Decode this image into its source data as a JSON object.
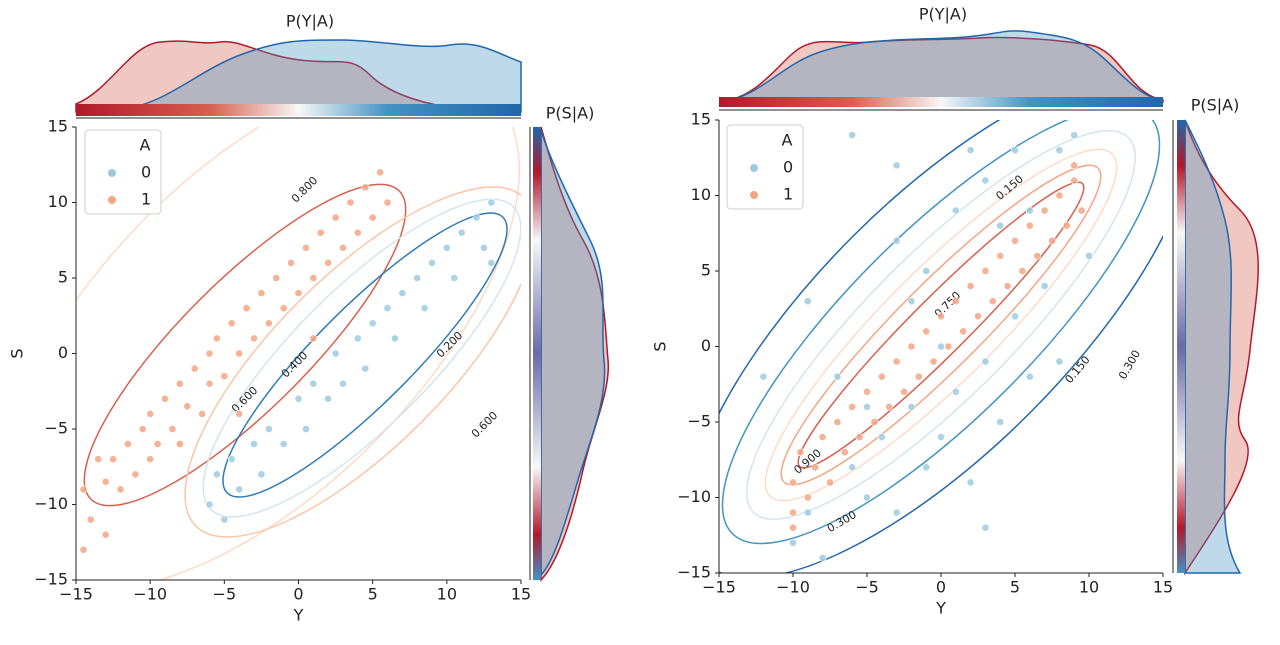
{
  "chart_data": [
    {
      "type": "scatter",
      "xlabel": "Y",
      "ylabel": "S",
      "legend_title": "A",
      "top_title": "P(Y|A)",
      "side_title": "P(S|A)",
      "xlim": [
        -15,
        15
      ],
      "ylim": [
        -15,
        15
      ],
      "xticks": [
        {
          "value": -15,
          "label": "−15"
        },
        {
          "value": -10,
          "label": "−10"
        },
        {
          "value": -5,
          "label": "−5"
        },
        0,
        5,
        10,
        15
      ],
      "yticks": [
        {
          "value": -15,
          "label": "−15"
        },
        {
          "value": -10,
          "label": "−10"
        },
        {
          "value": -5,
          "label": "−5"
        },
        0,
        5,
        10,
        15
      ],
      "contour_labels": [
        "0.800",
        "0.200",
        "0.600",
        "0.400",
        "0.600"
      ],
      "series": [
        {
          "name": "0",
          "color": "#9ecae1",
          "x": [
            -6,
            -5.5,
            -5,
            -4.5,
            -4,
            -3,
            -2.5,
            -2,
            -1,
            0,
            0.5,
            1,
            2,
            2.5,
            3,
            4,
            4.5,
            5,
            6,
            6.5,
            7,
            8,
            8.5,
            9,
            10,
            10.5,
            11,
            12,
            12.5,
            13,
            13
          ],
          "y": [
            -10,
            -8,
            -11,
            -7,
            -9,
            -6,
            -8,
            -5,
            -6,
            -3,
            -5,
            -2,
            -3,
            0,
            -2,
            1,
            -1,
            2,
            3,
            1,
            4,
            5,
            3,
            6,
            7,
            5,
            8,
            9,
            7,
            10,
            6
          ]
        },
        {
          "name": "1",
          "color": "#f4a582",
          "x": [
            -14.5,
            -14,
            -13.5,
            -13,
            -13,
            -12.5,
            -12,
            -11.5,
            -11,
            -10.5,
            -10,
            -10,
            -9.5,
            -9,
            -8.5,
            -8,
            -8,
            -7.5,
            -7,
            -6.5,
            -6,
            -6,
            -5.5,
            -5,
            -4.5,
            -4,
            -3.5,
            -3,
            -2.5,
            -2,
            -1.5,
            -1,
            -0.5,
            0,
            0.5,
            1,
            1.5,
            2,
            2.5,
            3,
            3.5,
            4,
            4.5,
            5,
            5.5,
            6,
            -14.5,
            -4,
            1
          ],
          "y": [
            -9,
            -11,
            -7,
            -12,
            -8.5,
            -7,
            -9,
            -6,
            -8,
            -5,
            -7,
            -4,
            -6,
            -3,
            -5,
            -2,
            -6,
            -3.5,
            -1,
            -4,
            0,
            -2,
            1,
            -1.5,
            2,
            0,
            3,
            1,
            4,
            2,
            5,
            3,
            6,
            4,
            7,
            5,
            8,
            6,
            9,
            7,
            10,
            8,
            11,
            9,
            12,
            10,
            -13,
            -4,
            1
          ]
        }
      ]
    },
    {
      "type": "scatter",
      "xlabel": "Y",
      "ylabel": "S",
      "legend_title": "A",
      "top_title": "P(Y|A)",
      "side_title": "P(S|A)",
      "xlim": [
        -15,
        15
      ],
      "ylim": [
        -15,
        15
      ],
      "xticks": [
        {
          "value": -15,
          "label": "−15"
        },
        {
          "value": -10,
          "label": "−10"
        },
        {
          "value": -5,
          "label": "−5"
        },
        0,
        5,
        10,
        15
      ],
      "yticks": [
        {
          "value": -15,
          "label": "−15"
        },
        {
          "value": -10,
          "label": "−10"
        },
        {
          "value": -5,
          "label": "−5"
        },
        0,
        5,
        10,
        15
      ],
      "contour_labels": [
        "0.150",
        "0.750",
        "0.150",
        "0.300",
        "0.900",
        "0.300"
      ],
      "series": [
        {
          "name": "0",
          "color": "#9ecae1",
          "x": [
            -10,
            -8,
            -9,
            -6,
            -7,
            -9,
            -5,
            -4,
            -3,
            -2,
            -1,
            0,
            1,
            2,
            3,
            4,
            5,
            6,
            -3,
            -2,
            -1,
            1,
            3,
            5,
            6,
            7,
            8,
            9,
            10,
            -6,
            2,
            -3,
            -12,
            4,
            0,
            -5,
            3,
            8
          ],
          "y": [
            -13,
            -14,
            -11,
            -8,
            -2,
            3,
            -10,
            -6,
            -11,
            -4,
            -8,
            -6,
            -3,
            -9,
            -1,
            -5,
            2,
            -2,
            7,
            3,
            5,
            9,
            11,
            13,
            9,
            4,
            13,
            14,
            6,
            14,
            13,
            12,
            -2,
            8,
            0,
            -4,
            -12,
            -1
          ]
        },
        {
          "name": "1",
          "color": "#f4a582",
          "x": [
            -10,
            -10,
            -9.5,
            -9,
            -8.5,
            -8,
            -7.5,
            -7,
            -6.5,
            -6,
            -5.5,
            -5,
            -4.5,
            -4,
            -3.5,
            -3,
            -2.5,
            -2,
            -1.5,
            -1,
            -0.5,
            0,
            0.5,
            1,
            1.5,
            2,
            2.5,
            3,
            3.5,
            4,
            4.5,
            5,
            5.5,
            6,
            6.5,
            7,
            7.5,
            8,
            8.5,
            9,
            9.5,
            9,
            -10
          ],
          "y": [
            -9,
            -11,
            -7,
            -10,
            -8,
            -6,
            -9,
            -5,
            -7,
            -4,
            -6,
            -3,
            -5,
            -2,
            -4,
            -1,
            -3,
            0,
            -2,
            1,
            -1,
            2,
            0,
            3,
            1,
            4,
            2,
            5,
            3,
            6,
            4,
            7,
            5,
            8,
            6,
            9,
            7,
            10,
            8,
            11,
            9,
            12,
            -12
          ]
        }
      ]
    }
  ]
}
